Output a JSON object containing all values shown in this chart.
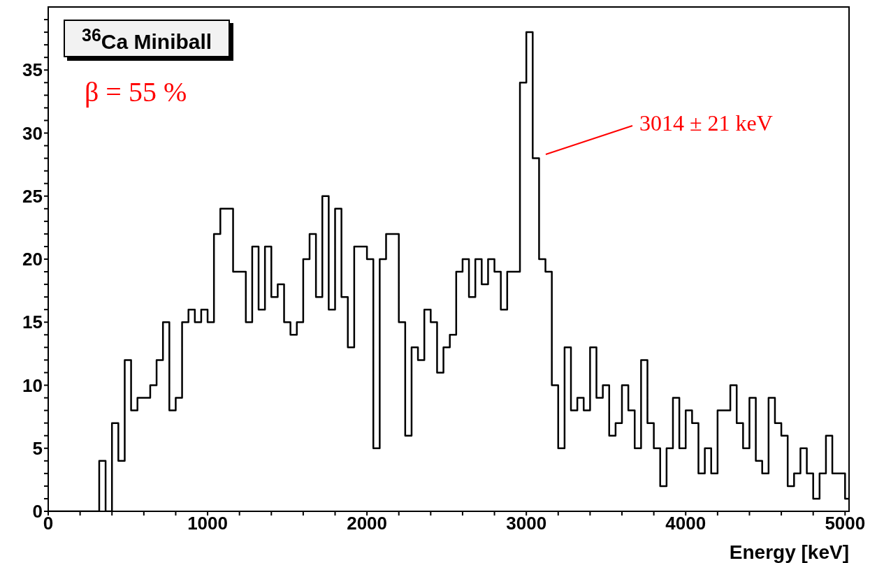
{
  "chart_data": {
    "type": "histogram",
    "title": "$^{36}$Ca Miniball",
    "xlabel": "Energy [keV]",
    "bins": [
      0,
      40,
      80,
      120,
      160,
      200,
      240,
      280,
      320,
      360,
      400,
      440,
      480,
      520,
      560,
      600,
      640,
      680,
      720,
      760,
      800,
      840,
      880,
      920,
      960,
      1000,
      1040,
      1080,
      1120,
      1160,
      1200,
      1240,
      1280,
      1320,
      1360,
      1400,
      1440,
      1480,
      1520,
      1560,
      1600,
      1640,
      1680,
      1720,
      1760,
      1800,
      1840,
      1880,
      1920,
      1960,
      2000,
      2040,
      2080,
      2120,
      2160,
      2200,
      2240,
      2280,
      2320,
      2360,
      2400,
      2440,
      2480,
      2520,
      2560,
      2600,
      2640,
      2680,
      2720,
      2760,
      2800,
      2840,
      2880,
      2920,
      2960,
      3000,
      3040,
      3080,
      3120,
      3160,
      3200,
      3240,
      3280,
      3320,
      3360,
      3400,
      3440,
      3480,
      3520,
      3560,
      3600,
      3640,
      3680,
      3720,
      3760,
      3800,
      3840,
      3880,
      3920,
      3960,
      4000,
      4040,
      4080,
      4120,
      4160,
      4200,
      4240,
      4280,
      4320,
      4360,
      4400,
      4440,
      4480,
      4520,
      4560,
      4600,
      4640,
      4680,
      4720,
      4760,
      4800,
      4840,
      4880,
      4920,
      4960,
      5000,
      5025
    ],
    "values": [
      0,
      0,
      0,
      0,
      0,
      0,
      0,
      0,
      4,
      0,
      7,
      4,
      12,
      8,
      9,
      9,
      10,
      12,
      15,
      8,
      9,
      15,
      16,
      15,
      16,
      15,
      22,
      24,
      24,
      19,
      19,
      15,
      21,
      16,
      21,
      17,
      18,
      15,
      14,
      15,
      20,
      22,
      17,
      25,
      16,
      24,
      17,
      13,
      21,
      21,
      20,
      5,
      20,
      22,
      22,
      15,
      6,
      13,
      12,
      16,
      15,
      11,
      13,
      14,
      19,
      20,
      17,
      20,
      18,
      20,
      19,
      16,
      19,
      19,
      34,
      38,
      28,
      20,
      19,
      10,
      5,
      13,
      8,
      9,
      8,
      13,
      9,
      10,
      6,
      7,
      10,
      8,
      5,
      12,
      7,
      5,
      2,
      5,
      9,
      5,
      8,
      7,
      3,
      5,
      3,
      8,
      8,
      10,
      7,
      5,
      9,
      4,
      3,
      9,
      7,
      6,
      2,
      3,
      5,
      3,
      1,
      3,
      6,
      3,
      3,
      1
    ],
    "color": "#000000",
    "xlim": [
      0,
      5025
    ],
    "ylim": [
      0,
      40
    ],
    "xticks": [
      0,
      {
        "value": 200,
        "label": null
      },
      {
        "value": 400,
        "label": null
      },
      {
        "value": 600,
        "label": null
      },
      {
        "value": 800,
        "label": null
      },
      1000,
      {
        "value": 1200,
        "label": null
      },
      {
        "value": 1400,
        "label": null
      },
      {
        "value": 1600,
        "label": null
      },
      {
        "value": 1800,
        "label": null
      },
      2000,
      {
        "value": 2200,
        "label": null
      },
      {
        "value": 2400,
        "label": null
      },
      {
        "value": 2600,
        "label": null
      },
      {
        "value": 2800,
        "label": null
      },
      3000,
      {
        "value": 3200,
        "label": null
      },
      {
        "value": 3400,
        "label": null
      },
      {
        "value": 3600,
        "label": null
      },
      {
        "value": 3800,
        "label": null
      },
      4000,
      {
        "value": 4200,
        "label": null
      },
      {
        "value": 4400,
        "label": null
      },
      {
        "value": 4600,
        "label": null
      },
      {
        "value": 4800,
        "label": null
      },
      5000
    ],
    "yticks": [
      0,
      {
        "value": 1,
        "label": null
      },
      {
        "value": 2,
        "label": null
      },
      {
        "value": 3,
        "label": null
      },
      {
        "value": 4,
        "label": null
      },
      5,
      {
        "value": 6,
        "label": null
      },
      {
        "value": 7,
        "label": null
      },
      {
        "value": 8,
        "label": null
      },
      {
        "value": 9,
        "label": null
      },
      10,
      {
        "value": 11,
        "label": null
      },
      {
        "value": 12,
        "label": null
      },
      {
        "value": 13,
        "label": null
      },
      {
        "value": 14,
        "label": null
      },
      15,
      {
        "value": 16,
        "label": null
      },
      {
        "value": 17,
        "label": null
      },
      {
        "value": 18,
        "label": null
      },
      {
        "value": 19,
        "label": null
      },
      20,
      {
        "value": 21,
        "label": null
      },
      {
        "value": 22,
        "label": null
      },
      {
        "value": 23,
        "label": null
      },
      {
        "value": 24,
        "label": null
      },
      25,
      {
        "value": 26,
        "label": null
      },
      {
        "value": 27,
        "label": null
      },
      {
        "value": 28,
        "label": null
      },
      {
        "value": 29,
        "label": null
      },
      30,
      {
        "value": 31,
        "label": null
      },
      {
        "value": 32,
        "label": null
      },
      {
        "value": 33,
        "label": null
      },
      {
        "value": 34,
        "label": null
      },
      35,
      {
        "value": 36,
        "label": null
      },
      {
        "value": 37,
        "label": null
      },
      {
        "value": 38,
        "label": null
      },
      {
        "value": 39,
        "label": null
      }
    ],
    "annotations": [
      "β = 55 %",
      "3014 ± 21 keV"
    ]
  }
}
